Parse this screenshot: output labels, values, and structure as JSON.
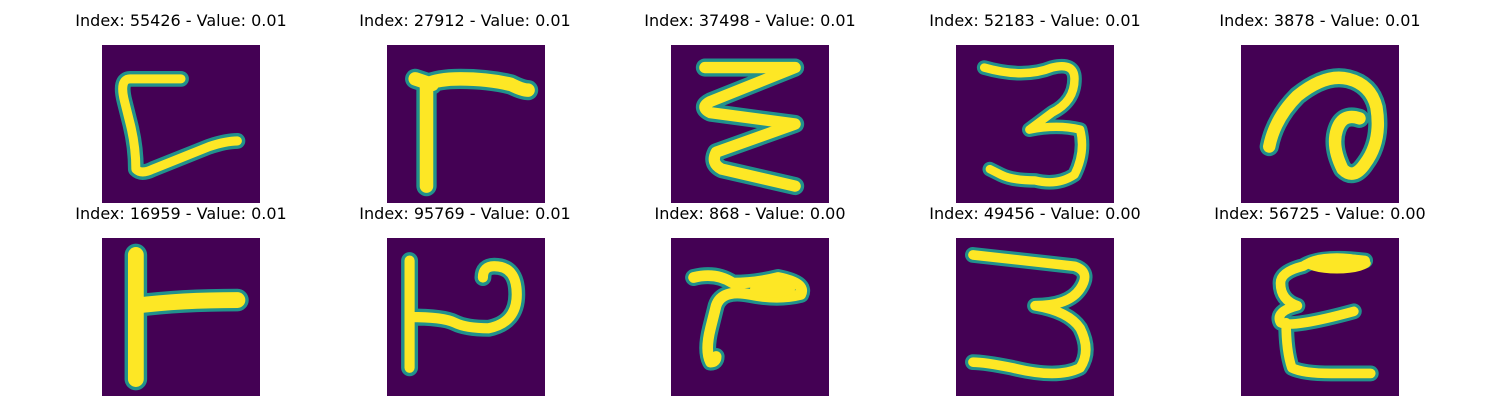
{
  "colors": {
    "background": "#440154",
    "stroke_mid": "#21918c",
    "stroke_core": "#fde725"
  },
  "colormap": "viridis",
  "panels": [
    {
      "title": "Index: 55426 - Value: 0.01",
      "glyph": "bracket-c"
    },
    {
      "title": "Index: 27912 - Value: 0.01",
      "glyph": "gamma-flag"
    },
    {
      "title": "Index: 37498 - Value: 0.01",
      "glyph": "zigzag"
    },
    {
      "title": "Index: 52183 - Value: 0.01",
      "glyph": "three"
    },
    {
      "title": "Index: 3878 - Value: 0.01",
      "glyph": "loop-a"
    },
    {
      "title": "Index: 16959 - Value: 0.01",
      "glyph": "t-sideways"
    },
    {
      "title": "Index: 95769 - Value: 0.01",
      "glyph": "p-hook"
    },
    {
      "title": "Index: 868 - Value: 0.00",
      "glyph": "r-shape"
    },
    {
      "title": "Index: 49456 - Value: 0.00",
      "glyph": "three-wide"
    },
    {
      "title": "Index: 56725 - Value: 0.00",
      "glyph": "epsilon"
    }
  ]
}
